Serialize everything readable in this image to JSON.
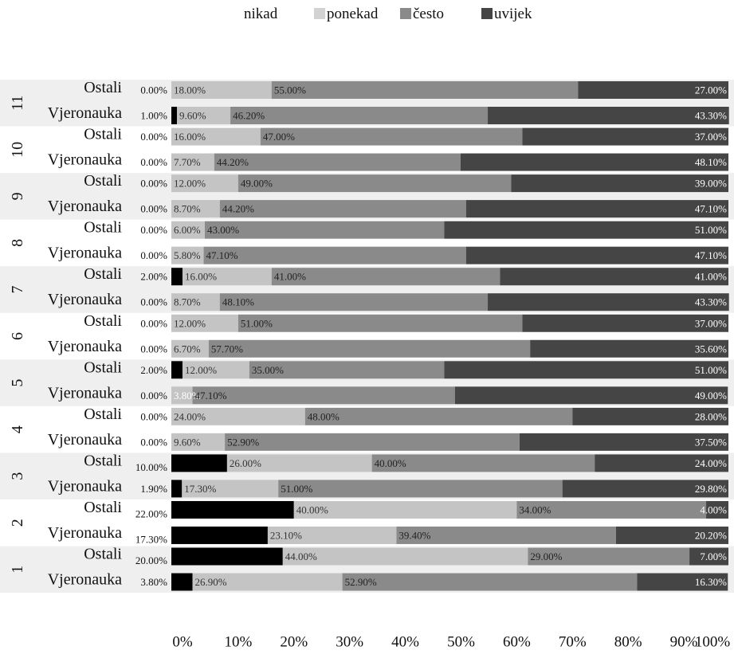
{
  "chart_data": {
    "type": "bar",
    "orientation": "horizontal",
    "stacked": true,
    "legend": {
      "placement": "top",
      "entries": [
        {
          "label": "nikad",
          "color": "#000000"
        },
        {
          "label": "ponekad",
          "color": "#c4c4c4"
        },
        {
          "label": "često",
          "color": "#8a8a8a"
        },
        {
          "label": "uvijek",
          "color": "#454545"
        }
      ]
    },
    "x_ticks": [
      "0%",
      "10%",
      "20%",
      "30%",
      "40%",
      "50%",
      "60%",
      "70%",
      "80%",
      "90%",
      "100%"
    ],
    "xlim": [
      0,
      100
    ],
    "series_colors": [
      "#000000",
      "#c4c4c4",
      "#8a8a8a",
      "#454545"
    ],
    "groups": [
      {
        "group": "11",
        "rows": [
          {
            "label": "Ostali",
            "values": [
              0.0,
              18.0,
              55.0,
              27.0
            ],
            "labels": [
              "0.00%",
              "18.00%",
              "55.00%",
              "27.00%"
            ]
          },
          {
            "label": "Vjeronauka",
            "values": [
              1.0,
              9.6,
              46.2,
              43.3
            ],
            "labels": [
              "1.00%",
              "9.60%",
              "46.20%",
              "43.30%"
            ]
          }
        ]
      },
      {
        "group": "10",
        "rows": [
          {
            "label": "Ostali",
            "values": [
              0.0,
              16.0,
              47.0,
              37.0
            ],
            "labels": [
              "0.00%",
              "16.00%",
              "47.00%",
              "37.00%"
            ]
          },
          {
            "label": "Vjeronauka",
            "values": [
              0.0,
              7.7,
              44.2,
              48.1
            ],
            "labels": [
              "0.00%",
              "7.70%",
              "44.20%",
              "48.10%"
            ]
          }
        ]
      },
      {
        "group": "9",
        "rows": [
          {
            "label": "Ostali",
            "values": [
              0.0,
              12.0,
              49.0,
              39.0
            ],
            "labels": [
              "0.00%",
              "12.00%",
              "49.00%",
              "39.00%"
            ]
          },
          {
            "label": "Vjeronauka",
            "values": [
              0.0,
              8.7,
              44.2,
              47.1
            ],
            "labels": [
              "0.00%",
              "8.70%",
              "44.20%",
              "47.10%"
            ]
          }
        ]
      },
      {
        "group": "8",
        "rows": [
          {
            "label": "Ostali",
            "values": [
              0.0,
              6.0,
              43.0,
              51.0
            ],
            "labels": [
              "0.00%",
              "6.00%",
              "43.00%",
              "51.00%"
            ]
          },
          {
            "label": "Vjeronauka",
            "values": [
              0.0,
              5.8,
              47.1,
              47.1
            ],
            "labels": [
              "0.00%",
              "5.80%",
              "47.10%",
              "47.10%"
            ]
          }
        ]
      },
      {
        "group": "7",
        "rows": [
          {
            "label": "Ostali",
            "values": [
              2.0,
              16.0,
              41.0,
              41.0
            ],
            "labels": [
              "2.00%",
              "16.00%",
              "41.00%",
              "41.00%"
            ]
          },
          {
            "label": "Vjeronauka",
            "values": [
              0.0,
              8.7,
              48.1,
              43.3
            ],
            "labels": [
              "0.00%",
              "8.70%",
              "48.10%",
              "43.30%"
            ]
          }
        ]
      },
      {
        "group": "6",
        "rows": [
          {
            "label": "Ostali",
            "values": [
              0.0,
              12.0,
              51.0,
              37.0
            ],
            "labels": [
              "0.00%",
              "12.00%",
              "51.00%",
              "37.00%"
            ]
          },
          {
            "label": "Vjeronauka",
            "values": [
              0.0,
              6.7,
              57.7,
              35.6
            ],
            "labels": [
              "0.00%",
              "6.70%",
              "57.70%",
              "35.60%"
            ]
          }
        ]
      },
      {
        "group": "5",
        "rows": [
          {
            "label": "Ostali",
            "values": [
              2.0,
              12.0,
              35.0,
              51.0
            ],
            "labels": [
              "2.00%",
              "12.00%",
              "35.00%",
              "51.00%"
            ]
          },
          {
            "label": "Vjeronauka",
            "values": [
              0.0,
              3.8,
              47.1,
              49.0
            ],
            "labels": [
              "0.00%",
              "3.80%",
              "47.10%",
              "49.00%"
            ]
          }
        ]
      },
      {
        "group": "4",
        "rows": [
          {
            "label": "Ostali",
            "values": [
              0.0,
              24.0,
              48.0,
              28.0
            ],
            "labels": [
              "0.00%",
              "24.00%",
              "48.00%",
              "28.00%"
            ]
          },
          {
            "label": "Vjeronauka",
            "values": [
              0.0,
              9.6,
              52.9,
              37.5
            ],
            "labels": [
              "0.00%",
              "9.60%",
              "52.90%",
              "37.50%"
            ]
          }
        ]
      },
      {
        "group": "3",
        "rows": [
          {
            "label": "Ostali",
            "values": [
              10.0,
              26.0,
              40.0,
              24.0
            ],
            "labels": [
              "10.00%",
              "26.00%",
              "40.00%",
              "24.00%"
            ]
          },
          {
            "label": "Vjeronauka",
            "values": [
              1.9,
              17.3,
              51.0,
              29.8
            ],
            "labels": [
              "1.90%",
              "17.30%",
              "51.00%",
              "29.80%"
            ]
          }
        ]
      },
      {
        "group": "2",
        "rows": [
          {
            "label": "Ostali",
            "values": [
              22.0,
              40.0,
              34.0,
              4.0
            ],
            "labels": [
              "22.00%",
              "40.00%",
              "34.00%",
              "4.00%"
            ]
          },
          {
            "label": "Vjeronauka",
            "values": [
              17.3,
              23.1,
              39.4,
              20.2
            ],
            "labels": [
              "17.30%",
              "23.10%",
              "39.40%",
              "20.20%"
            ]
          }
        ]
      },
      {
        "group": "1",
        "rows": [
          {
            "label": "Ostali",
            "values": [
              20.0,
              44.0,
              29.0,
              7.0
            ],
            "labels": [
              "20.00%",
              "44.00%",
              "29.00%",
              "7.00%"
            ]
          },
          {
            "label": "Vjeronauka",
            "values": [
              3.8,
              26.9,
              52.9,
              16.3
            ],
            "labels": [
              "3.80%",
              "26.90%",
              "52.90%",
              "16.30%"
            ]
          }
        ]
      }
    ]
  }
}
